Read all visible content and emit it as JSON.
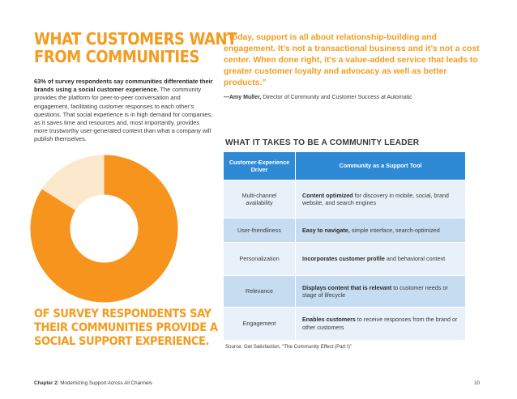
{
  "headline": {
    "line1": "WHAT CUSTOMERS WANT",
    "line2": "FROM COMMUNITIES"
  },
  "intro": {
    "bold": "63% of survey respondents say communities differentiate their brands using a social customer experience.",
    "text": " The community provides the platform for peer-to-peer conversation and engagement, facilitating customer responses to each other’s questions. That social experience is in high demand for companies, as it saves time and resources and, most importantly, provides more trustworthy user-generated content than what a company will publish themselves."
  },
  "stat": {
    "value": "84",
    "symbol": "%",
    "fraction": 0.84,
    "color_main": "#f7941d",
    "color_rest": "#fce9cd"
  },
  "result": {
    "line1": "OF SURVEY RESPONDENTS SAY",
    "line2": "THEIR COMMUNITIES PROVIDE A",
    "line3": "SOCIAL SUPPORT EXPERIENCE."
  },
  "quote": {
    "text": "“Today, support is all about relationship-building and engagement. It’s not a transactional business and it’s not a cost center. When done right, it’s a value-added service that leads to greater customer loyalty and advocacy as well as better products.”",
    "author": "—Amy Muller,",
    "role": " Director of Community and Customer Success at Automatic"
  },
  "table": {
    "title": "WHAT IT TAKES TO BE A COMMUNITY LEADER",
    "header_col1": "Customer-Experience Driver",
    "header_col2": "Community as a Support Tool",
    "rows": [
      {
        "driver": "Multi-channel availability",
        "bold": "Content optimized",
        "rest": " for discovery in mobile, social, brand website, and search engines"
      },
      {
        "driver": "User-friendliness",
        "bold": "Easy to navigate,",
        "rest": " simple interface, search-optimized"
      },
      {
        "driver": "Personalization",
        "bold": "Incorporates customer profile",
        "rest": " and behavioral context"
      },
      {
        "driver": "Relevance",
        "bold": "Displays content that is relevant",
        "rest": " to customer needs or stage of lifecycle"
      },
      {
        "driver": "Engagement",
        "bold": "Enables customers",
        "rest": " to receive responses from the brand or other customers"
      }
    ]
  },
  "source": "Source: Get Satisfaction, “The Community Effect (Part I)”",
  "footer": {
    "chapter": "Chapter 2:",
    "title": " Modernizing Support Across All Channels",
    "page": "10"
  }
}
